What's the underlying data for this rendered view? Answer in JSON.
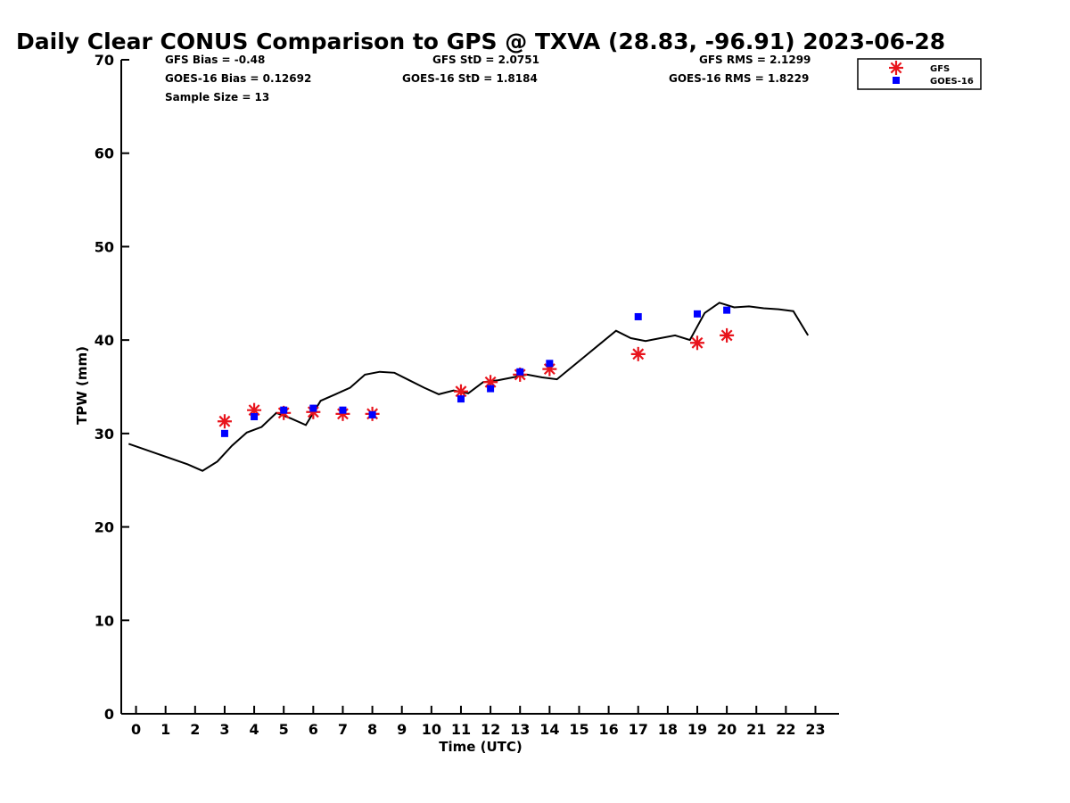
{
  "chart_data": {
    "type": "scatter",
    "title": "Daily Clear CONUS Comparison to GPS @ TXVA (28.83, -96.91) 2023-06-28",
    "xlabel": "Time (UTC)",
    "ylabel": "TPW (mm)",
    "xlim": [
      -0.5,
      23.8
    ],
    "ylim": [
      0,
      70
    ],
    "xticks": [
      0,
      1,
      2,
      3,
      4,
      5,
      6,
      7,
      8,
      9,
      10,
      11,
      12,
      13,
      14,
      15,
      16,
      17,
      18,
      19,
      20,
      21,
      22,
      23
    ],
    "yticks": [
      0,
      10,
      20,
      30,
      40,
      50,
      60,
      70
    ],
    "stats": {
      "gfs_bias": "GFS Bias = -0.48",
      "goes_bias": "GOES-16 Bias = 0.12692",
      "sample_size": "Sample Size = 13",
      "gfs_std": "GFS StD = 2.0751",
      "goes_std": "GOES-16 StD = 1.8184",
      "gfs_rms": "GFS RMS = 2.1299",
      "goes_rms": "GOES-16 RMS = 1.8229"
    },
    "legend_position": "top-right",
    "series": [
      {
        "name": "GFS",
        "marker": "asterisk",
        "color": "#e8141c",
        "x": [
          3,
          4,
          5,
          6,
          7,
          8,
          11,
          12,
          13,
          14,
          17,
          19,
          20
        ],
        "y": [
          31.3,
          32.5,
          32.2,
          32.3,
          32.1,
          32.1,
          34.5,
          35.5,
          36.3,
          36.9,
          38.5,
          39.7,
          40.5
        ]
      },
      {
        "name": "GOES-16",
        "marker": "square",
        "color": "#0000ff",
        "x": [
          3,
          4,
          5,
          6,
          7,
          8,
          11,
          12,
          13,
          14,
          17,
          19,
          20
        ],
        "y": [
          30.0,
          31.8,
          32.5,
          32.7,
          32.5,
          32.0,
          33.7,
          34.8,
          36.6,
          37.5,
          42.5,
          42.8,
          43.2
        ]
      },
      {
        "type": "line",
        "color": "#000000",
        "x": [
          -0.25,
          0.75,
          1.75,
          2.25,
          2.75,
          3.25,
          3.75,
          4.25,
          4.75,
          5.25,
          5.75,
          6.25,
          6.75,
          7.25,
          7.75,
          8.25,
          8.75,
          9.25,
          9.75,
          10.25,
          10.75,
          11.25,
          11.75,
          12.25,
          12.75,
          13.25,
          13.75,
          14.25,
          14.75,
          15.25,
          15.75,
          16.25,
          16.75,
          17.25,
          17.75,
          18.25,
          18.75,
          19.25,
          19.75,
          20.25,
          20.75,
          21.25,
          21.75,
          22.25,
          22.75
        ],
        "y": [
          28.9,
          27.8,
          26.7,
          26.0,
          27.0,
          28.7,
          30.1,
          30.7,
          32.2,
          31.6,
          30.9,
          33.5,
          34.2,
          34.9,
          36.3,
          36.6,
          36.5,
          35.7,
          34.9,
          34.2,
          34.6,
          34.3,
          35.5,
          35.7,
          36.0,
          36.3,
          36.0,
          35.8,
          37.1,
          38.4,
          39.7,
          41.0,
          40.2,
          39.9,
          40.2,
          40.5,
          40.0,
          42.9,
          44.0,
          43.5,
          43.6,
          43.4,
          43.3,
          43.1,
          40.5
        ]
      }
    ]
  }
}
